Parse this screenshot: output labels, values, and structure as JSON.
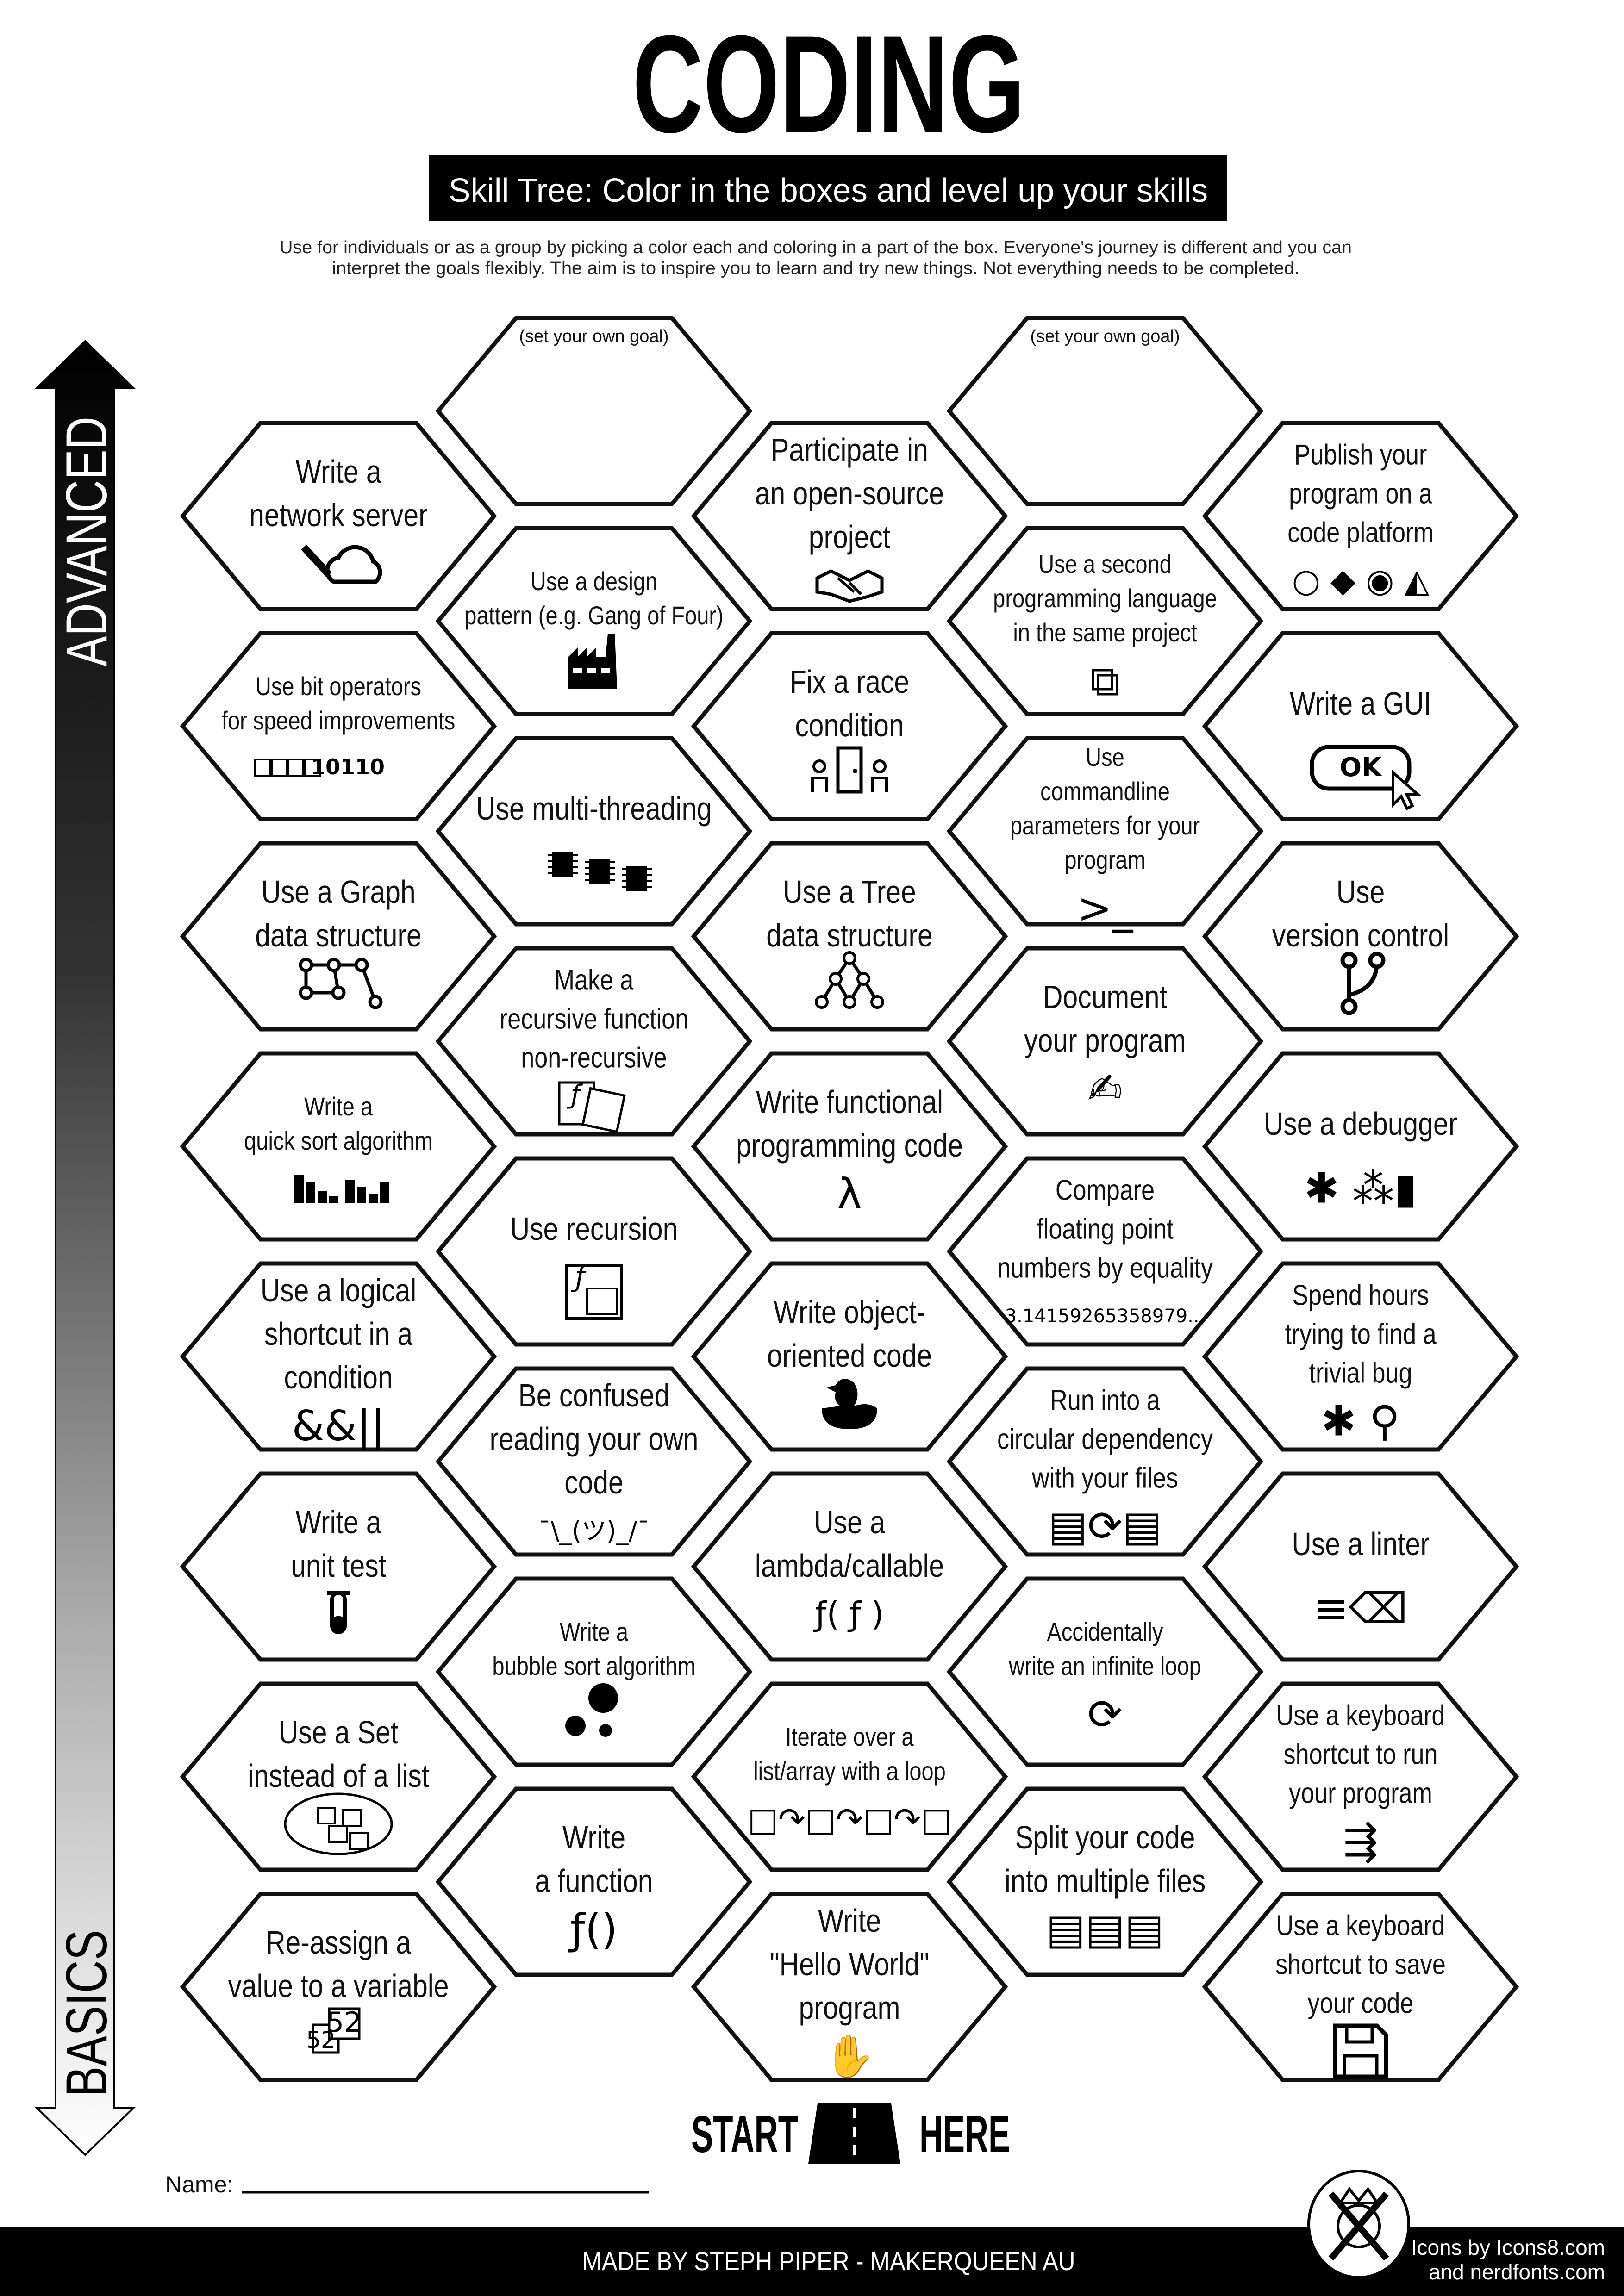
{
  "title": "CODING",
  "subtitle": "Skill Tree:  Color in the boxes and level up your skills",
  "description": [
    "Use for individuals or as a group by picking a color each and coloring in a part of the box.  Everyone's journey is different and you can",
    "interpret the goals flexibly.  The aim is to inspire you to learn and try new things. Not everything needs to be completed."
  ],
  "axis": {
    "top_label": "ADVANCED",
    "bottom_label": "BASICS"
  },
  "colors": {
    "ink": "#000000",
    "paper": "#ffffff",
    "footer": "#000000"
  },
  "columns": [
    {
      "items": [
        {
          "lines": [
            "Write a",
            "network server"
          ],
          "icon": "network-cloud-icon"
        },
        {
          "lines": [
            "Use bit operators",
            "for speed improvements"
          ],
          "icon": "bits-icon",
          "icon_text": "10110"
        },
        {
          "lines": [
            "Use a Graph",
            "data structure"
          ],
          "icon": "graph-icon"
        },
        {
          "lines": [
            "Write a",
            "quick sort algorithm"
          ],
          "icon": "bar-sort-icon"
        },
        {
          "lines": [
            "Use a logical",
            "shortcut in a",
            "condition"
          ],
          "icon": "logic-operators-icon",
          "icon_text": "&&||"
        },
        {
          "lines": [
            "Write a",
            "unit test"
          ],
          "icon": "test-tube-icon"
        },
        {
          "lines": [
            "Use a Set",
            "instead of a list"
          ],
          "icon": "set-icon"
        },
        {
          "lines": [
            "Re-assign a",
            "value to a variable"
          ],
          "icon": "variable-boxes-icon",
          "icon_text": "52"
        }
      ]
    },
    {
      "items": [
        {
          "goal_prompt": "(set your own goal)",
          "lines": []
        },
        {
          "lines": [
            "Use a design",
            "pattern (e.g. Gang of Four)"
          ],
          "icon": "factory-icon"
        },
        {
          "lines": [
            "Use multi-threading"
          ],
          "icon": "chips-icon"
        },
        {
          "lines": [
            "Make a",
            "recursive function",
            "non-recursive"
          ],
          "icon": "function-cards-icon",
          "icon_text": "ƒ"
        },
        {
          "lines": [
            "Use recursion"
          ],
          "icon": "nested-function-icon",
          "icon_text": "ƒ"
        },
        {
          "lines": [
            "Be confused",
            "reading your own",
            "code"
          ],
          "icon": "shrug-icon",
          "icon_text": "¯\\_(ツ)_/¯"
        },
        {
          "lines": [
            "Write a",
            "bubble sort algorithm"
          ],
          "icon": "bubbles-icon"
        },
        {
          "lines": [
            "Write",
            "a function"
          ],
          "icon": "function-icon",
          "icon_text": "ƒ()"
        }
      ]
    },
    {
      "items": [
        {
          "lines": [
            "Participate in",
            "an open-source",
            "project"
          ],
          "icon": "handshake-icon"
        },
        {
          "lines": [
            "Fix a race",
            "condition"
          ],
          "icon": "race-door-icon"
        },
        {
          "lines": [
            "Use a Tree",
            "data structure"
          ],
          "icon": "tree-icon"
        },
        {
          "lines": [
            "Write functional",
            "programming code"
          ],
          "icon": "lambda-icon",
          "icon_text": "λ"
        },
        {
          "lines": [
            "Write object-",
            "oriented code"
          ],
          "icon": "duck-icon"
        },
        {
          "lines": [
            "Use a",
            "lambda/callable"
          ],
          "icon": "callable-icon",
          "icon_text": "ƒ( ƒ )"
        },
        {
          "lines": [
            "Iterate over a",
            "list/array with a loop"
          ],
          "icon": "loop-array-icon",
          "icon_text": "□↷□↷□↷□"
        },
        {
          "lines": [
            "Write",
            "\"Hello World\"",
            "program"
          ],
          "icon": "waving-hand-icon",
          "icon_text": "✋"
        }
      ]
    },
    {
      "items": [
        {
          "goal_prompt": "(set your own goal)",
          "lines": []
        },
        {
          "lines": [
            "Use a second",
            "programming language",
            "in the same project"
          ],
          "icon": "languages-icon",
          "icon_text": "⧉"
        },
        {
          "lines": [
            "Use",
            "commandline",
            "parameters for your",
            "program"
          ],
          "icon": "terminal-icon",
          "icon_text": ">_"
        },
        {
          "lines": [
            "Document",
            "your program"
          ],
          "icon": "document-pen-icon",
          "icon_text": "✍"
        },
        {
          "lines": [
            "Compare",
            "floating point",
            "numbers by equality"
          ],
          "icon": "pi-digits-icon",
          "icon_text": "3.14159265358979..."
        },
        {
          "lines": [
            "Run into a",
            "circular dependency",
            "with your files"
          ],
          "icon": "circular-files-icon",
          "icon_text": "▤⟳▤"
        },
        {
          "lines": [
            "Accidentally",
            "write an infinite loop"
          ],
          "icon": "refresh-icon",
          "icon_text": "⟳"
        },
        {
          "lines": [
            "Split your code",
            "into multiple files"
          ],
          "icon": "files-icon",
          "icon_text": "▤▤▤"
        }
      ]
    },
    {
      "items": [
        {
          "lines": [
            "Publish your",
            "program on a",
            "code platform"
          ],
          "icon": "code-platforms-icon",
          "icon_text": "○ ◆ ◉ ◭"
        },
        {
          "lines": [
            "Write a GUI"
          ],
          "icon": "ok-button-icon",
          "icon_text": "OK"
        },
        {
          "lines": [
            "Use",
            "version control"
          ],
          "icon": "git-branch-icon"
        },
        {
          "lines": [
            "Use a debugger"
          ],
          "icon": "bug-spray-icon",
          "icon_text": "✱ ⁂▮"
        },
        {
          "lines": [
            "Spend hours",
            "trying to find a",
            "trivial bug"
          ],
          "icon": "bug-search-icon",
          "icon_text": "✱ ⚲"
        },
        {
          "lines": [
            "Use a linter"
          ],
          "icon": "broom-icon",
          "icon_text": "≡⌫"
        },
        {
          "lines": [
            "Use a keyboard",
            "shortcut to run",
            "your program"
          ],
          "icon": "running-person-icon",
          "icon_text": "⇶"
        },
        {
          "lines": [
            "Use a keyboard",
            "shortcut to save",
            "your code"
          ],
          "icon": "floppy-disk-icon"
        }
      ]
    }
  ],
  "start": {
    "left": "START",
    "right": "HERE"
  },
  "name_label": "Name:",
  "footer": {
    "credit": "MADE BY STEPH PIPER  -  MAKERQUEEN AU",
    "icons_line1": "Icons by Icons8.com",
    "icons_line2": "and nerdfonts.com"
  }
}
